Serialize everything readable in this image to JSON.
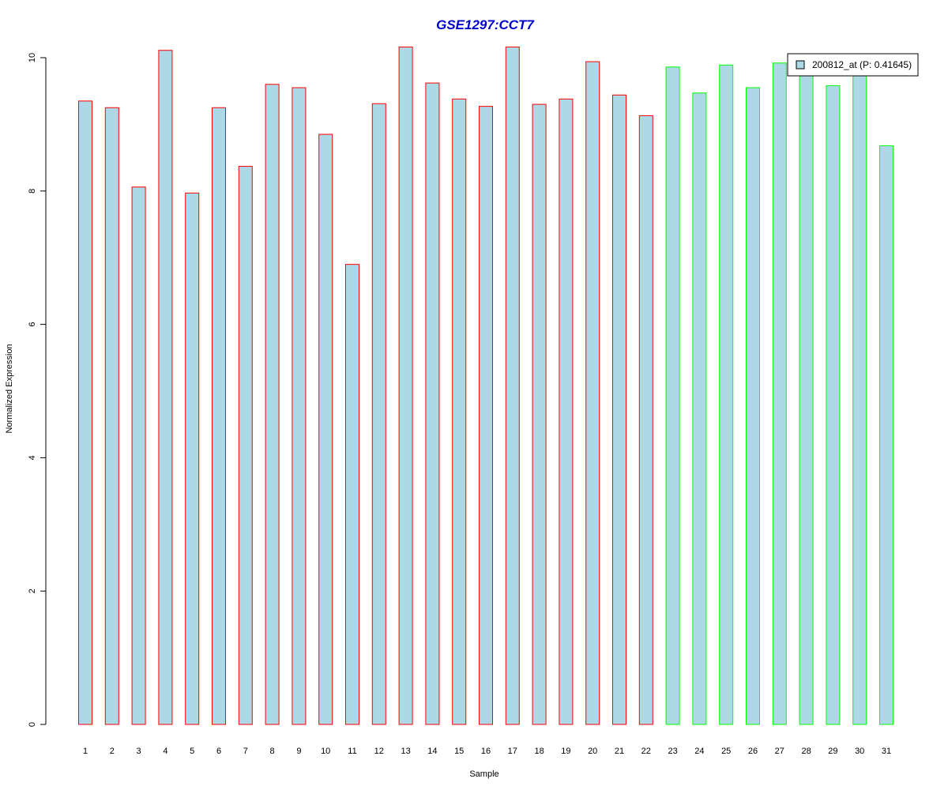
{
  "chart_data": {
    "type": "bar",
    "title": "GSE1297:CCT7",
    "xlabel": "Sample",
    "ylabel": "Normalized Expression",
    "ylim": [
      0,
      10
    ],
    "yticks": [
      0,
      2,
      4,
      6,
      8,
      10
    ],
    "grid": false,
    "legend_position": "top-right",
    "categories": [
      "1",
      "2",
      "3",
      "4",
      "5",
      "6",
      "7",
      "8",
      "9",
      "10",
      "11",
      "12",
      "13",
      "14",
      "15",
      "16",
      "17",
      "18",
      "19",
      "20",
      "21",
      "22",
      "23",
      "24",
      "25",
      "26",
      "27",
      "28",
      "29",
      "30",
      "31"
    ],
    "series": [
      {
        "name": "200812_at (P: 0.41645)",
        "values": [
          9.35,
          9.25,
          8.06,
          10.11,
          7.97,
          9.25,
          8.37,
          9.6,
          9.55,
          8.85,
          6.9,
          9.31,
          10.16,
          9.62,
          9.38,
          9.27,
          10.16,
          9.3,
          9.38,
          9.94,
          9.44,
          9.13,
          9.86,
          9.47,
          9.89,
          9.55,
          9.92,
          9.8,
          9.58,
          9.8,
          8.68
        ],
        "groups": [
          1,
          1,
          1,
          1,
          1,
          1,
          1,
          1,
          1,
          1,
          1,
          1,
          1,
          1,
          1,
          1,
          1,
          1,
          1,
          1,
          1,
          1,
          2,
          2,
          2,
          2,
          2,
          2,
          2,
          2,
          2
        ]
      }
    ],
    "colors": {
      "bar_fill": "#add8e6",
      "group1_border": "#ff0000",
      "group2_border": "#00ff00",
      "title": "#0000cd",
      "axis": "#000000"
    }
  }
}
